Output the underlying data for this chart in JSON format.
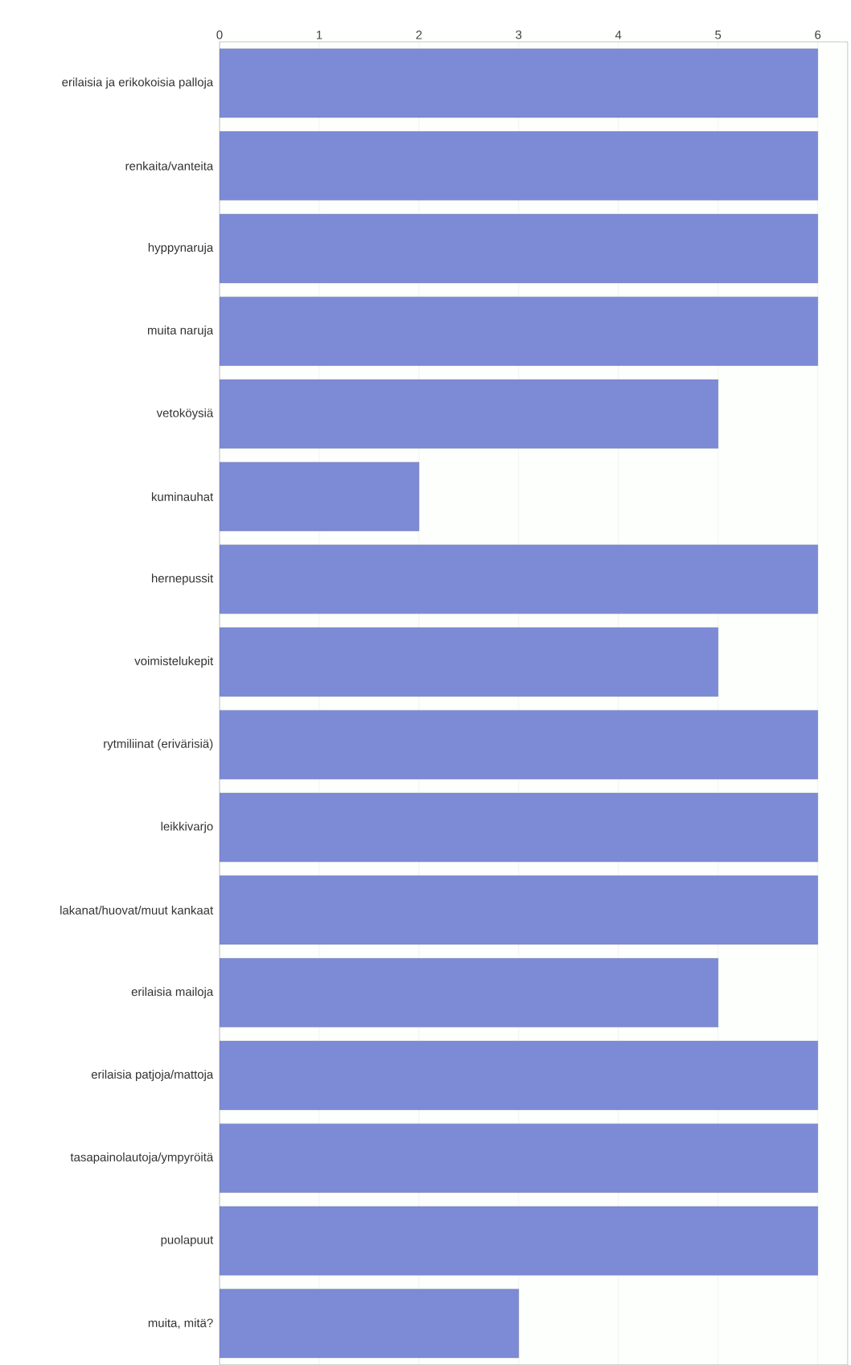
{
  "chart_data": {
    "type": "bar",
    "orientation": "horizontal",
    "categories": [
      "erilaisia ja erikokoisia palloja",
      "renkaita/vanteita",
      "hyppynaruja",
      "muita naruja",
      "vetoköysiä",
      "kuminauhat",
      "hernepussit",
      "voimistelukepit",
      "rytmiliinat (erivärisiä)",
      "leikkivarjo",
      "lakanat/huovat/muut kankaat",
      "erilaisia mailoja",
      "erilaisia patjoja/mattoja",
      "tasapainolautoja/ympyröitä",
      "puolapuut",
      "muita, mitä?"
    ],
    "values": [
      6,
      6,
      6,
      6,
      5,
      2,
      6,
      5,
      6,
      6,
      6,
      5,
      6,
      6,
      6,
      3
    ],
    "color": "#7d8bd6",
    "xlim": [
      0,
      6.3
    ],
    "xticks": [
      0,
      1,
      2,
      3,
      4,
      5,
      6
    ],
    "grid": "x"
  }
}
